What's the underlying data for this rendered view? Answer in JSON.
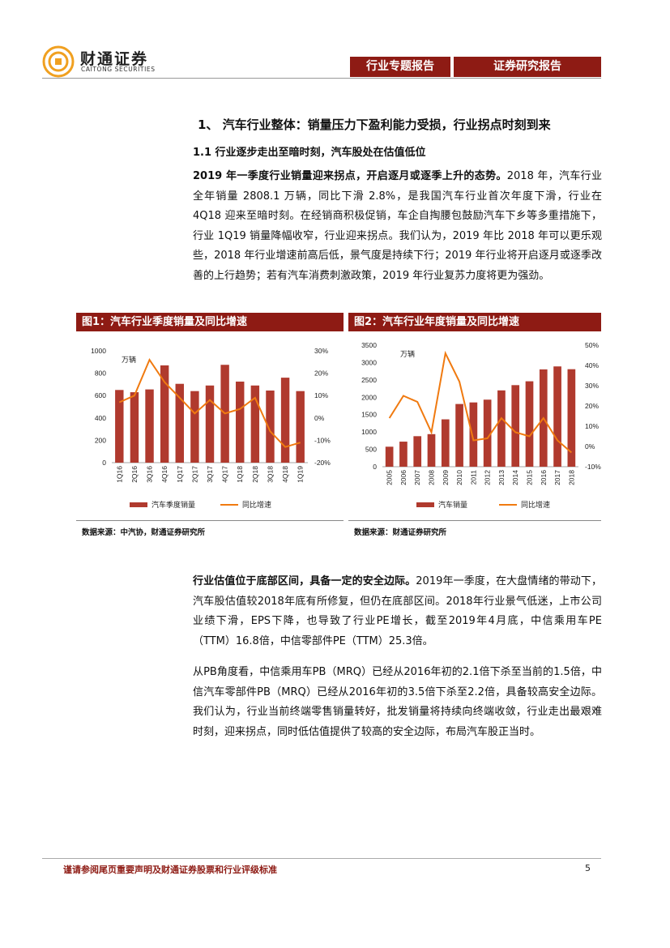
{
  "header": {
    "logo_cn": "财通证券",
    "logo_en": "CAITONG SECURITIES",
    "tab1": "行业专题报告",
    "tab2": "证券研究报告"
  },
  "section": {
    "title": "1、 汽车行业整体：销量压力下盈利能力受损，行业拐点时刻到来",
    "subtitle": "1.1  行业逐步走出至暗时刻，汽车股处在估值低位"
  },
  "paragraph1": {
    "lead": "2019 年一季度行业销量迎来拐点，开启逐月或逐季上升的态势。",
    "body": "2018 年，汽车行业全年销量 2808.1 万辆，同比下滑 2.8%，是我国汽车行业首次年度下滑，行业在 4Q18 迎来至暗时刻。在经销商积极促销，车企自掏腰包鼓励汽车下乡等多重措施下，行业 1Q19 销量降幅收窄，行业迎来拐点。我们认为，2019 年比 2018 年可以更乐观些，2018 年行业增速前高后低，景气度是持续下行；2019 年行业将开启逐月或逐季改善的上行趋势；若有汽车消费刺激政策，2019 年行业复苏力度将更为强劲。"
  },
  "paragraph2": {
    "lead": "行业估值位于底部区间，具备一定的安全边际。",
    "body": "2019年一季度，在大盘情绪的带动下，汽车股估值较2018年底有所修复，但仍在底部区间。2018年行业景气低迷，上市公司业绩下滑，EPS下降，也导致了行业PE增长，截至2019年4月底，中信乘用车PE（TTM）16.8倍，中信零部件PE（TTM）25.3倍。"
  },
  "paragraph3": {
    "body": "从PB角度看，中信乘用车PB（MRQ）已经从2016年初的2.1倍下杀至当前的1.5倍，中信汽车零部件PB（MRQ）已经从2016年初的3.5倍下杀至2.2倍，具备较高安全边际。我们认为，行业当前终端零售销量转好，批发销量将持续向终端收敛，行业走出最艰难时刻，迎来拐点，同时低估值提供了较高的安全边际，布局汽车股正当时。"
  },
  "figure1": {
    "title": "图1：汽车行业季度销量及同比增速",
    "source": "数据来源：中汽协，财通证券研究所"
  },
  "figure2": {
    "title": "图2：汽车行业年度销量及同比增速",
    "source": "数据来源：财通证券研究所"
  },
  "colors": {
    "bar": "#b03a2e",
    "line": "#f07a10",
    "brand": "#8e1b14"
  },
  "chart_data": [
    {
      "type": "bar",
      "unit_label": "万辆",
      "categories": [
        "1Q16",
        "2Q16",
        "3Q16",
        "4Q16",
        "1Q17",
        "2Q17",
        "3Q17",
        "4Q17",
        "1Q18",
        "2Q18",
        "3Q18",
        "4Q18",
        "1Q19"
      ],
      "series": [
        {
          "name": "汽车季度销量",
          "type": "bar",
          "axis": "left",
          "values": [
            650,
            630,
            655,
            870,
            705,
            640,
            690,
            875,
            725,
            690,
            645,
            760,
            640
          ]
        },
        {
          "name": "同比增速",
          "type": "line",
          "axis": "right",
          "values": [
            7,
            10,
            26,
            16,
            9,
            2,
            8,
            2,
            4,
            9,
            -6,
            -13,
            -11
          ]
        }
      ],
      "ylim_left": [
        0,
        1000
      ],
      "yticks_left": [
        "0",
        "200",
        "400",
        "600",
        "800",
        "1000"
      ],
      "ylim_right": [
        -20,
        30
      ],
      "yticks_right": [
        "-20%",
        "-10%",
        "0%",
        "10%",
        "20%",
        "30%"
      ],
      "legend": "bottom"
    },
    {
      "type": "bar",
      "unit_label": "万辆",
      "categories": [
        "2005",
        "2006",
        "2007",
        "2008",
        "2009",
        "2010",
        "2011",
        "2012",
        "2013",
        "2014",
        "2015",
        "2016",
        "2017",
        "2018"
      ],
      "series": [
        {
          "name": "汽车销量",
          "type": "bar",
          "axis": "left",
          "values": [
            576,
            722,
            879,
            938,
            1364,
            1806,
            1851,
            1931,
            2198,
            2349,
            2460,
            2803,
            2888,
            2808
          ]
        },
        {
          "name": "同比增速",
          "type": "line",
          "axis": "right",
          "values": [
            14,
            25,
            22,
            7,
            46,
            32,
            3,
            4,
            14,
            7,
            5,
            14,
            3,
            -3
          ]
        }
      ],
      "ylim_left": [
        0,
        3500
      ],
      "yticks_left": [
        "0",
        "500",
        "1000",
        "1500",
        "2000",
        "2500",
        "3000",
        "3500"
      ],
      "ylim_right": [
        -10,
        50
      ],
      "yticks_right": [
        "-10%",
        "0%",
        "10%",
        "20%",
        "30%",
        "40%",
        "50%"
      ],
      "legend": "bottom"
    }
  ],
  "footer": {
    "disclaimer": "谨请参阅尾页重要声明及财通证券股票和行业评级标准",
    "page": "5"
  }
}
